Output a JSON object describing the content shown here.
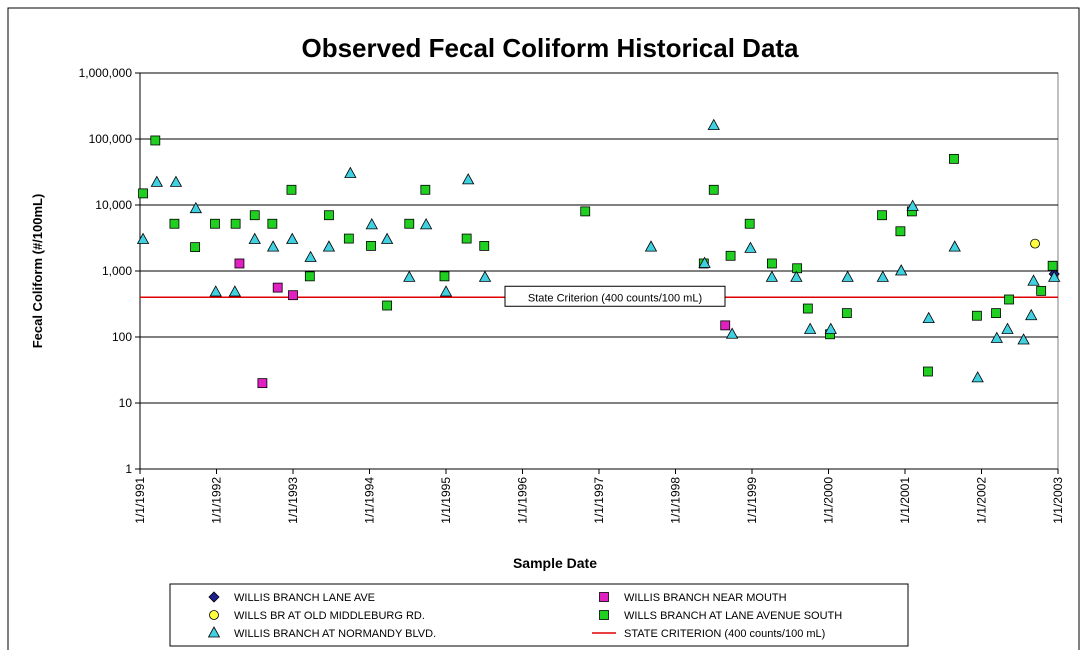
{
  "chart_data": {
    "type": "scatter",
    "title": "Observed Fecal Coliform Historical Data",
    "xlabel": "Sample Date",
    "ylabel": "Fecal Coliform (#/100mL)",
    "log_y": true,
    "grid": true,
    "xlim": [
      1991,
      2003
    ],
    "xticks": [
      {
        "value": 1991,
        "label": "1/1/1991"
      },
      {
        "value": 1992,
        "label": "1/1/1992"
      },
      {
        "value": 1993,
        "label": "1/1/1993"
      },
      {
        "value": 1994,
        "label": "1/1/1994"
      },
      {
        "value": 1995,
        "label": "1/1/1995"
      },
      {
        "value": 1996,
        "label": "1/1/1996"
      },
      {
        "value": 1997,
        "label": "1/1/1997"
      },
      {
        "value": 1998,
        "label": "1/1/1998"
      },
      {
        "value": 1999,
        "label": "1/1/1999"
      },
      {
        "value": 2000,
        "label": "1/1/2000"
      },
      {
        "value": 2001,
        "label": "1/1/2001"
      },
      {
        "value": 2002,
        "label": "1/1/2002"
      },
      {
        "value": 2003,
        "label": "1/1/2003"
      }
    ],
    "ylim": [
      1,
      1000000
    ],
    "yticks": [
      1,
      10,
      100,
      {
        "value": 1000,
        "label": "1,000"
      },
      {
        "value": 10000,
        "label": "10,000"
      },
      {
        "value": 100000,
        "label": "100,000"
      },
      {
        "value": 1000000,
        "label": "1,000,000"
      }
    ],
    "series": [
      {
        "name": "WILLIS BRANCH LANE AVE",
        "color": "#1f1f8f",
        "marker": "diamond",
        "x": [
          2002.95
        ],
        "values": [
          900
        ]
      },
      {
        "name": "WILLIS BRANCH NEAR MOUTH",
        "color": "#e020c0",
        "marker": "square",
        "x": [
          1992.3,
          1992.6,
          1992.8,
          1993.0,
          1998.65
        ],
        "values": [
          1300,
          20,
          560,
          430,
          150
        ]
      },
      {
        "name": "WILLS BR AT OLD MIDDLEBURG RD.",
        "color": "#ffff40",
        "marker": "circle",
        "x": [
          2002.7
        ],
        "values": [
          2600
        ]
      },
      {
        "name": "WILLS BRANCH AT LANE AVENUE SOUTH",
        "color": "#20d020",
        "marker": "square",
        "x": [
          1991.04,
          1991.2,
          1991.45,
          1991.72,
          1991.98,
          1992.25,
          1992.5,
          1992.73,
          1992.98,
          1993.22,
          1993.47,
          1993.73,
          1994.02,
          1994.23,
          1994.52,
          1994.73,
          1994.98,
          1995.27,
          1995.5,
          1996.82,
          1998.37,
          1998.5,
          1998.72,
          1998.97,
          1999.26,
          1999.59,
          1999.73,
          2000.02,
          2000.24,
          2000.7,
          2000.94,
          2001.09,
          2001.3,
          2001.64,
          2001.94,
          2002.19,
          2002.36,
          2002.78,
          2002.93
        ],
        "values": [
          15000,
          95000,
          5200,
          2300,
          5200,
          5200,
          7000,
          5200,
          17000,
          830,
          7000,
          3100,
          2400,
          300,
          5200,
          17000,
          830,
          3100,
          2400,
          8000,
          1300,
          17000,
          1700,
          5200,
          1300,
          1100,
          270,
          110,
          230,
          7000,
          4000,
          8000,
          30,
          50000,
          210,
          230,
          370,
          500,
          1200
        ]
      },
      {
        "name": "WILLIS BRANCH AT NORMANDY BLVD.",
        "color": "#40d0e0",
        "marker": "triangle",
        "x": [
          1991.04,
          1991.22,
          1991.47,
          1991.73,
          1991.99,
          1992.24,
          1992.5,
          1992.74,
          1992.99,
          1993.23,
          1993.47,
          1993.75,
          1994.03,
          1994.23,
          1994.52,
          1994.74,
          1995.0,
          1995.29,
          1995.51,
          1997.68,
          1998.38,
          1998.5,
          1998.74,
          1998.98,
          1999.26,
          1999.58,
          1999.76,
          2000.03,
          2000.25,
          2000.71,
          2000.95,
          2001.1,
          2001.31,
          2001.65,
          2001.95,
          2002.2,
          2002.34,
          2002.55,
          2002.65,
          2002.68,
          2002.95
        ],
        "values": [
          3000,
          22000,
          22000,
          8800,
          480,
          480,
          3000,
          2300,
          3000,
          1600,
          2300,
          30000,
          5000,
          3000,
          800,
          5000,
          480,
          24000,
          800,
          2300,
          1300,
          160000,
          110,
          2200,
          800,
          800,
          130,
          130,
          800,
          800,
          1000,
          9500,
          190,
          2300,
          24,
          95,
          130,
          90,
          210,
          700,
          800
        ]
      }
    ],
    "criterion": {
      "value": 400,
      "label": "State Criterion (400 counts/100 mL)",
      "legend": "STATE CRITERION (400 counts/100 mL)",
      "color": "#e00000"
    }
  }
}
